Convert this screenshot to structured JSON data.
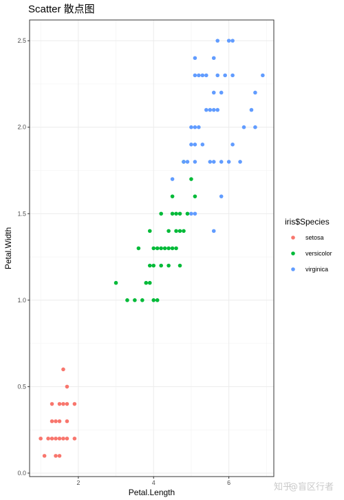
{
  "chart_data": {
    "type": "scatter",
    "title": "Scatter 散点图",
    "xlabel": "Petal.Length",
    "ylabel": "Petal.Width",
    "xlim": [
      0.705,
      7.195
    ],
    "ylim": [
      -0.02,
      2.62
    ],
    "x_ticks": [
      2,
      4,
      6
    ],
    "y_ticks": [
      0.0,
      0.5,
      1.0,
      1.5,
      2.0,
      2.5
    ],
    "y_tick_labels": [
      "0.0",
      "0.5",
      "1.0",
      "1.5",
      "2.0",
      "2.5"
    ],
    "grid": true,
    "legend": {
      "title": "iris$Species",
      "placement": "right"
    },
    "series": [
      {
        "name": "setosa",
        "color": "#F8766D",
        "points": [
          [
            1.0,
            0.2
          ],
          [
            1.1,
            0.1
          ],
          [
            1.2,
            0.2
          ],
          [
            1.3,
            0.2
          ],
          [
            1.3,
            0.3
          ],
          [
            1.3,
            0.4
          ],
          [
            1.4,
            0.1
          ],
          [
            1.4,
            0.2
          ],
          [
            1.4,
            0.3
          ],
          [
            1.5,
            0.1
          ],
          [
            1.5,
            0.2
          ],
          [
            1.5,
            0.3
          ],
          [
            1.5,
            0.4
          ],
          [
            1.6,
            0.2
          ],
          [
            1.6,
            0.4
          ],
          [
            1.6,
            0.6
          ],
          [
            1.7,
            0.2
          ],
          [
            1.7,
            0.3
          ],
          [
            1.7,
            0.4
          ],
          [
            1.7,
            0.5
          ],
          [
            1.9,
            0.2
          ],
          [
            1.9,
            0.4
          ]
        ]
      },
      {
        "name": "versicolor",
        "color": "#00BA38",
        "points": [
          [
            3.0,
            1.1
          ],
          [
            3.3,
            1.0
          ],
          [
            3.5,
            1.0
          ],
          [
            3.6,
            1.3
          ],
          [
            3.7,
            1.0
          ],
          [
            3.8,
            1.1
          ],
          [
            3.9,
            1.1
          ],
          [
            3.9,
            1.2
          ],
          [
            3.9,
            1.4
          ],
          [
            4.0,
            1.0
          ],
          [
            4.0,
            1.2
          ],
          [
            4.0,
            1.3
          ],
          [
            4.1,
            1.0
          ],
          [
            4.1,
            1.3
          ],
          [
            4.2,
            1.2
          ],
          [
            4.2,
            1.3
          ],
          [
            4.2,
            1.5
          ],
          [
            4.3,
            1.3
          ],
          [
            4.4,
            1.2
          ],
          [
            4.4,
            1.3
          ],
          [
            4.4,
            1.4
          ],
          [
            4.5,
            1.3
          ],
          [
            4.5,
            1.5
          ],
          [
            4.5,
            1.6
          ],
          [
            4.6,
            1.3
          ],
          [
            4.6,
            1.4
          ],
          [
            4.6,
            1.5
          ],
          [
            4.7,
            1.2
          ],
          [
            4.7,
            1.4
          ],
          [
            4.7,
            1.5
          ],
          [
            4.8,
            1.4
          ],
          [
            4.8,
            1.8
          ],
          [
            4.9,
            1.5
          ],
          [
            5.0,
            1.7
          ],
          [
            5.1,
            1.6
          ]
        ]
      },
      {
        "name": "virginica",
        "color": "#619CFF",
        "points": [
          [
            4.5,
            1.7
          ],
          [
            4.8,
            1.8
          ],
          [
            4.9,
            1.8
          ],
          [
            5.0,
            1.5
          ],
          [
            5.0,
            1.9
          ],
          [
            5.0,
            2.0
          ],
          [
            5.1,
            1.5
          ],
          [
            5.1,
            1.8
          ],
          [
            5.1,
            1.9
          ],
          [
            5.1,
            2.0
          ],
          [
            5.1,
            2.3
          ],
          [
            5.1,
            2.4
          ],
          [
            5.2,
            2.0
          ],
          [
            5.2,
            2.3
          ],
          [
            5.3,
            1.9
          ],
          [
            5.3,
            2.3
          ],
          [
            5.4,
            2.1
          ],
          [
            5.4,
            2.3
          ],
          [
            5.5,
            1.8
          ],
          [
            5.5,
            2.1
          ],
          [
            5.6,
            1.4
          ],
          [
            5.6,
            1.8
          ],
          [
            5.6,
            2.1
          ],
          [
            5.6,
            2.2
          ],
          [
            5.6,
            2.4
          ],
          [
            5.7,
            2.1
          ],
          [
            5.7,
            2.3
          ],
          [
            5.7,
            2.5
          ],
          [
            5.8,
            1.6
          ],
          [
            5.8,
            1.8
          ],
          [
            5.8,
            2.2
          ],
          [
            5.9,
            2.3
          ],
          [
            6.0,
            1.8
          ],
          [
            6.0,
            2.5
          ],
          [
            6.1,
            1.9
          ],
          [
            6.1,
            2.3
          ],
          [
            6.1,
            2.5
          ],
          [
            6.3,
            1.8
          ],
          [
            6.4,
            2.0
          ],
          [
            6.6,
            2.1
          ],
          [
            6.7,
            2.0
          ],
          [
            6.7,
            2.2
          ],
          [
            6.9,
            2.3
          ]
        ]
      }
    ]
  },
  "watermark": {
    "prefix": "知乎",
    "handle": "@盲区行者"
  }
}
